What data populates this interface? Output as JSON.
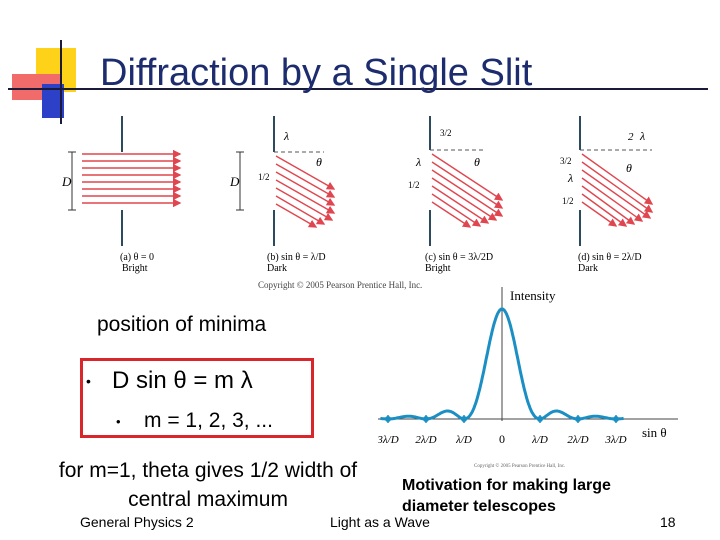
{
  "slide": {
    "title": "Diffraction by a Single Slit",
    "minima_label": "position of minima",
    "equation": "D sin θ = m λ",
    "m_values": "m = 1, 2, 3, ...",
    "note": "for m=1, theta gives 1/2 width of central maximum",
    "motivation": "Motivation for making large diameter telescopes",
    "bullet": "•",
    "footer_left": "General Physics 2",
    "footer_center": "Light as a Wave",
    "page_number": "18"
  },
  "figure_top": {
    "panels": [
      {
        "caption": "(a) θ = 0",
        "result": "Bright"
      },
      {
        "caption": "(b) sin θ = λ/D",
        "result": "Dark"
      },
      {
        "caption": "(c) sin θ = 3λ/2D",
        "result": "Bright"
      },
      {
        "caption": "(d) sin θ = 2λ/D",
        "result": "Dark"
      }
    ],
    "labels": {
      "D": "D",
      "lambda": "λ",
      "theta": "θ",
      "half": "1/2",
      "three_half": "3/2",
      "two": "2"
    },
    "copyright": "Copyright © 2005 Pearson Prentice Hall, Inc."
  },
  "figure_graph": {
    "ylabel": "Intensity",
    "xlabel": "sin θ",
    "ticks": [
      "3λ/D",
      "2λ/D",
      "λ/D",
      "0",
      "λ/D",
      "2λ/D",
      "3λ/D"
    ],
    "copyright": "Copyright © 2005 Pearson Prentice Hall, Inc.",
    "colors": {
      "curve": "#1b8fc4",
      "points": "#1b8fc4"
    }
  }
}
